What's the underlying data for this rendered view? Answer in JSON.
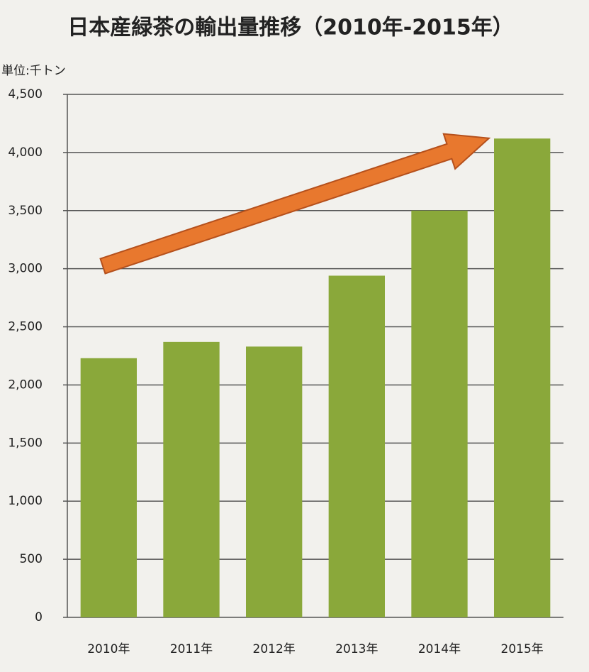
{
  "chart_data": {
    "type": "bar",
    "title": "日本産緑茶の輸出量推移（2010年-2015年）",
    "y_label": "単位:千トン",
    "categories": [
      "2010年",
      "2011年",
      "2012年",
      "2013年",
      "2014年",
      "2015年"
    ],
    "values": [
      2230,
      2370,
      2330,
      2940,
      3500,
      4120
    ],
    "color": "#8aa83a",
    "ylim": [
      0,
      4500
    ],
    "yticks": [
      0,
      500,
      {
        "value": 1000,
        "label": "1,000"
      },
      {
        "value": 1500,
        "label": "1,500"
      },
      {
        "value": 2000,
        "label": "2,000"
      },
      {
        "value": 2500,
        "label": "2,500"
      },
      {
        "value": 3000,
        "label": "3,000"
      },
      {
        "value": 3500,
        "label": "3,500"
      },
      {
        "value": 4000,
        "label": "4,000"
      },
      {
        "value": 4500,
        "label": "4,500"
      }
    ],
    "grid": true
  }
}
